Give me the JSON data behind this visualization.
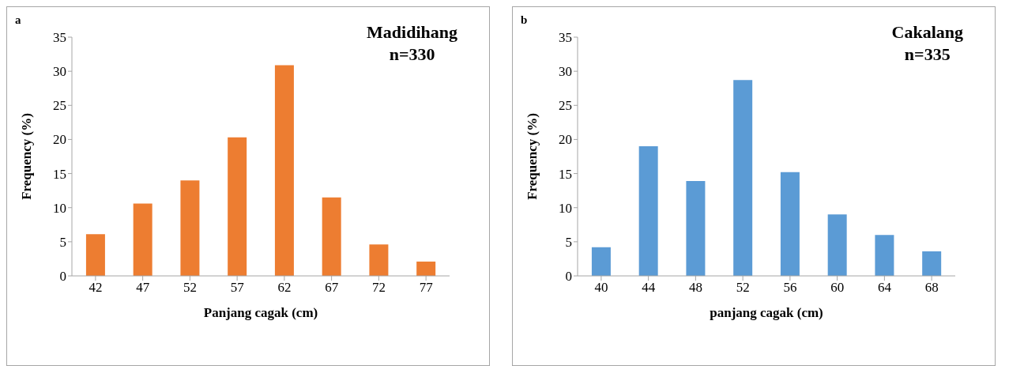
{
  "chart_data": [
    {
      "type": "bar",
      "title": "Madidihang",
      "subtitle": "n=330",
      "annotations": [
        "a"
      ],
      "xlabel": "Panjang cagak (cm)",
      "ylabel": "Frequency (%)",
      "categories": [
        "42",
        "47",
        "52",
        "57",
        "62",
        "67",
        "72",
        "77"
      ],
      "values": [
        6.1,
        10.6,
        14.0,
        20.3,
        30.9,
        11.5,
        4.6,
        2.1
      ],
      "color": "#ed7d31",
      "ylim": [
        0,
        35
      ],
      "yticks": [
        0,
        5,
        10,
        15,
        20,
        25,
        30,
        35
      ],
      "grid": false
    },
    {
      "type": "bar",
      "title": "Cakalang",
      "subtitle": "n=335",
      "annotations": [
        "b"
      ],
      "xlabel": "panjang cagak (cm)",
      "ylabel": "Frequency (%)",
      "categories": [
        "40",
        "44",
        "48",
        "52",
        "56",
        "60",
        "64",
        "68"
      ],
      "values": [
        4.2,
        19.0,
        13.9,
        28.7,
        15.2,
        9.0,
        6.0,
        3.6
      ],
      "color": "#5b9bd5",
      "ylim": [
        0,
        35
      ],
      "yticks": [
        0,
        5,
        10,
        15,
        20,
        25,
        30,
        35
      ],
      "grid": false
    }
  ]
}
